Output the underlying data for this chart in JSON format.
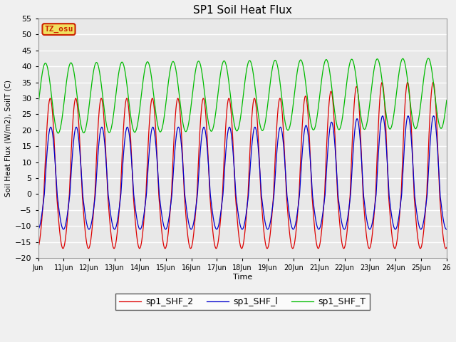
{
  "title": "SP1 Soil Heat Flux",
  "xlabel": "Time",
  "ylabel": "Soil Heat Flux (W/m2), SoilT (C)",
  "ylim": [
    -20,
    55
  ],
  "yticks": [
    -20,
    -15,
    -10,
    -5,
    0,
    5,
    10,
    15,
    20,
    25,
    30,
    35,
    40,
    45,
    50,
    55
  ],
  "xtick_labels": [
    "Jun",
    "11Jun",
    "12Jun",
    "13Jun",
    "14Jun",
    "15Jun",
    "16Jun",
    "17Jun",
    "18Jun",
    "19Jun",
    "20Jun",
    "21Jun",
    "22Jun",
    "23Jun",
    "24Jun",
    "25Jun",
    "26"
  ],
  "color_shf2": "#dd0000",
  "color_shf1": "#0000cc",
  "color_shft": "#00bb00",
  "legend_labels": [
    "sp1_SHF_2",
    "sp1_SHF_l",
    "sp1_SHF_T"
  ],
  "tz_label": "TZ_osu",
  "fig_bg": "#f0f0f0",
  "plot_bg": "#e8e8e8",
  "n_points": 1600,
  "start_day": 10,
  "end_day": 26
}
